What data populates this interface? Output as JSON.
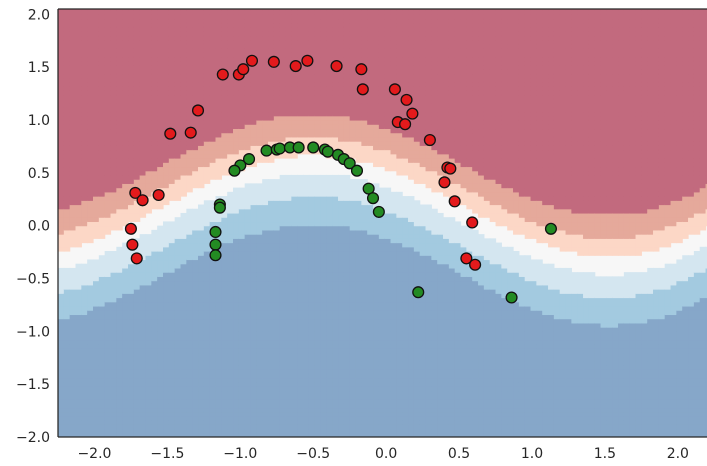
{
  "chart_data": {
    "type": "scatter",
    "title": "",
    "xlabel": "",
    "ylabel": "",
    "xlim": [
      -2.25,
      2.2
    ],
    "ylim": [
      -2.0,
      2.05
    ],
    "grid": false,
    "legend": "none",
    "x_ticks": [
      -2.0,
      -1.5,
      -1.0,
      -0.5,
      0.0,
      0.5,
      1.0,
      1.5,
      2.0
    ],
    "x_tick_labels": [
      "−2.0",
      "−1.5",
      "−1.0",
      "−0.5",
      "0.0",
      "0.5",
      "1.0",
      "1.5",
      "2.0"
    ],
    "y_ticks": [
      2.0,
      1.5,
      1.0,
      0.5,
      0.0,
      -0.5,
      -1.0,
      -1.5,
      -2.0
    ],
    "y_tick_labels": [
      "2.0",
      "1.5",
      "1.0",
      "0.5",
      "0.0",
      "−0.5",
      "−1.0",
      "−1.5",
      "−2.0"
    ],
    "decision_regions": {
      "colormap": "RdBu",
      "levels_colors": [
        "#c26a7e",
        "#e5a99b",
        "#fcd7c6",
        "#f7f7f7",
        "#d4e6f0",
        "#a3cae0",
        "#86a7c9"
      ]
    },
    "series": [
      {
        "color": "#e31a1c",
        "points": [
          [
            -0.92,
            1.56
          ],
          [
            -0.77,
            1.55
          ],
          [
            -0.54,
            1.56
          ],
          [
            -0.62,
            1.51
          ],
          [
            -0.34,
            1.51
          ],
          [
            -0.17,
            1.48
          ],
          [
            -1.12,
            1.43
          ],
          [
            -1.01,
            1.43
          ],
          [
            -0.98,
            1.48
          ],
          [
            -0.16,
            1.29
          ],
          [
            0.06,
            1.29
          ],
          [
            0.14,
            1.19
          ],
          [
            -1.29,
            1.09
          ],
          [
            0.18,
            1.06
          ],
          [
            0.08,
            0.98
          ],
          [
            0.13,
            0.96
          ],
          [
            -1.48,
            0.87
          ],
          [
            -1.34,
            0.88
          ],
          [
            0.3,
            0.81
          ],
          [
            0.42,
            0.55
          ],
          [
            0.44,
            0.54
          ],
          [
            0.4,
            0.41
          ],
          [
            -1.72,
            0.31
          ],
          [
            -1.56,
            0.29
          ],
          [
            -1.67,
            0.24
          ],
          [
            0.47,
            0.23
          ],
          [
            0.59,
            0.03
          ],
          [
            -1.75,
            -0.03
          ],
          [
            -1.74,
            -0.18
          ],
          [
            -1.71,
            -0.31
          ],
          [
            0.55,
            -0.31
          ],
          [
            0.61,
            -0.37
          ]
        ]
      },
      {
        "color": "#238b23",
        "points": [
          [
            -0.82,
            0.71
          ],
          [
            -0.75,
            0.72
          ],
          [
            -0.73,
            0.73
          ],
          [
            -0.66,
            0.74
          ],
          [
            -0.6,
            0.74
          ],
          [
            -0.5,
            0.74
          ],
          [
            -0.42,
            0.72
          ],
          [
            -0.4,
            0.7
          ],
          [
            -0.33,
            0.67
          ],
          [
            -0.29,
            0.63
          ],
          [
            -0.25,
            0.59
          ],
          [
            -0.2,
            0.52
          ],
          [
            -0.94,
            0.63
          ],
          [
            -1.0,
            0.57
          ],
          [
            -1.04,
            0.52
          ],
          [
            -1.14,
            0.2
          ],
          [
            -1.14,
            0.17
          ],
          [
            -1.17,
            -0.06
          ],
          [
            -1.17,
            -0.18
          ],
          [
            -1.17,
            -0.28
          ],
          [
            -0.12,
            0.35
          ],
          [
            -0.09,
            0.26
          ],
          [
            -0.05,
            0.13
          ],
          [
            0.22,
            -0.63
          ],
          [
            0.86,
            -0.68
          ],
          [
            1.13,
            -0.03
          ]
        ]
      }
    ]
  }
}
